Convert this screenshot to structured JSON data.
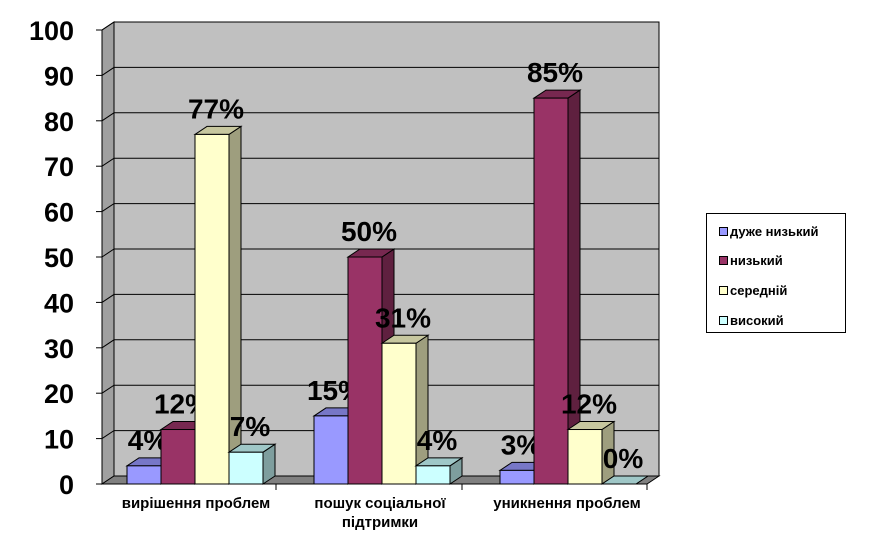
{
  "chart_data": {
    "type": "bar",
    "categories": [
      "вирішення проблем",
      "пошук соціальної підтримки",
      "уникнення проблем"
    ],
    "series": [
      {
        "name": "дуже низький",
        "values": [
          4,
          15,
          3
        ],
        "color": "#9999ff",
        "labels": [
          "4%",
          "15%",
          "3%"
        ]
      },
      {
        "name": "низький",
        "values": [
          12,
          50,
          85
        ],
        "color": "#993366",
        "labels": [
          "12%",
          "50%",
          "85%"
        ]
      },
      {
        "name": "середній",
        "values": [
          77,
          31,
          12
        ],
        "color": "#ffffcc",
        "labels": [
          "77%",
          "31%",
          "12%"
        ]
      },
      {
        "name": "високий",
        "values": [
          7,
          4,
          0
        ],
        "color": "#ccffff",
        "labels": [
          "7%",
          "4%",
          "0%"
        ]
      }
    ],
    "ylim": [
      0,
      100
    ],
    "yticks": [
      "0",
      "10",
      "20",
      "30",
      "40",
      "50",
      "60",
      "70",
      "80",
      "90",
      "100"
    ],
    "grid": true,
    "legend_position": "right",
    "style": "3d-clustered-column",
    "plot_background": "#c0c0c0"
  }
}
